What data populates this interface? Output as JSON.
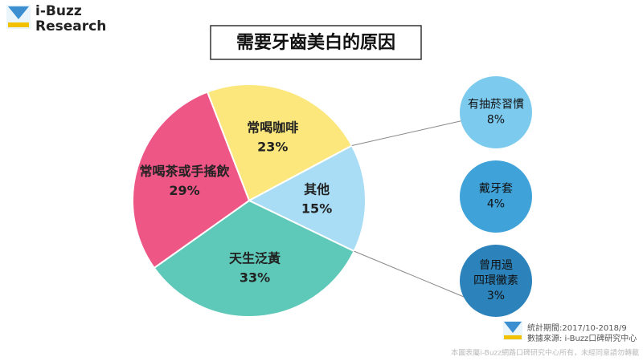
{
  "chart_data": {
    "type": "pie",
    "title": "需要牙齒美白的原因",
    "brand": [
      "i-Buzz",
      "Research"
    ],
    "categories": [
      "常喝咖啡",
      "其他",
      "天生泛黃",
      "常喝茶或手搖飲"
    ],
    "values": [
      23,
      15,
      33,
      29
    ],
    "value_labels": [
      "23%",
      "15%",
      "33%",
      "29%"
    ],
    "colors": [
      "#fbe77c",
      "#a9ddf6",
      "#5fc9b9",
      "#ee5686"
    ],
    "breakdown": [
      {
        "name_lines": [
          "有抽菸習慣"
        ],
        "value": 8,
        "value_label": "8%",
        "color": "#7ccaee"
      },
      {
        "name_lines": [
          "戴牙套"
        ],
        "value": 4,
        "value_label": "4%",
        "color": "#3fa2d9"
      },
      {
        "name_lines": [
          "曾用過",
          "四環黴素"
        ],
        "value": 3,
        "value_label": "3%",
        "color": "#2c82bb"
      }
    ],
    "notes": [
      "統計期間:2017/10-2018/9",
      "數據來源: i-Buzz口碑研究中心"
    ],
    "copyright": "本圖表屬i-Buzz網路口碑研究中心所有，未經同意請勿轉載"
  }
}
